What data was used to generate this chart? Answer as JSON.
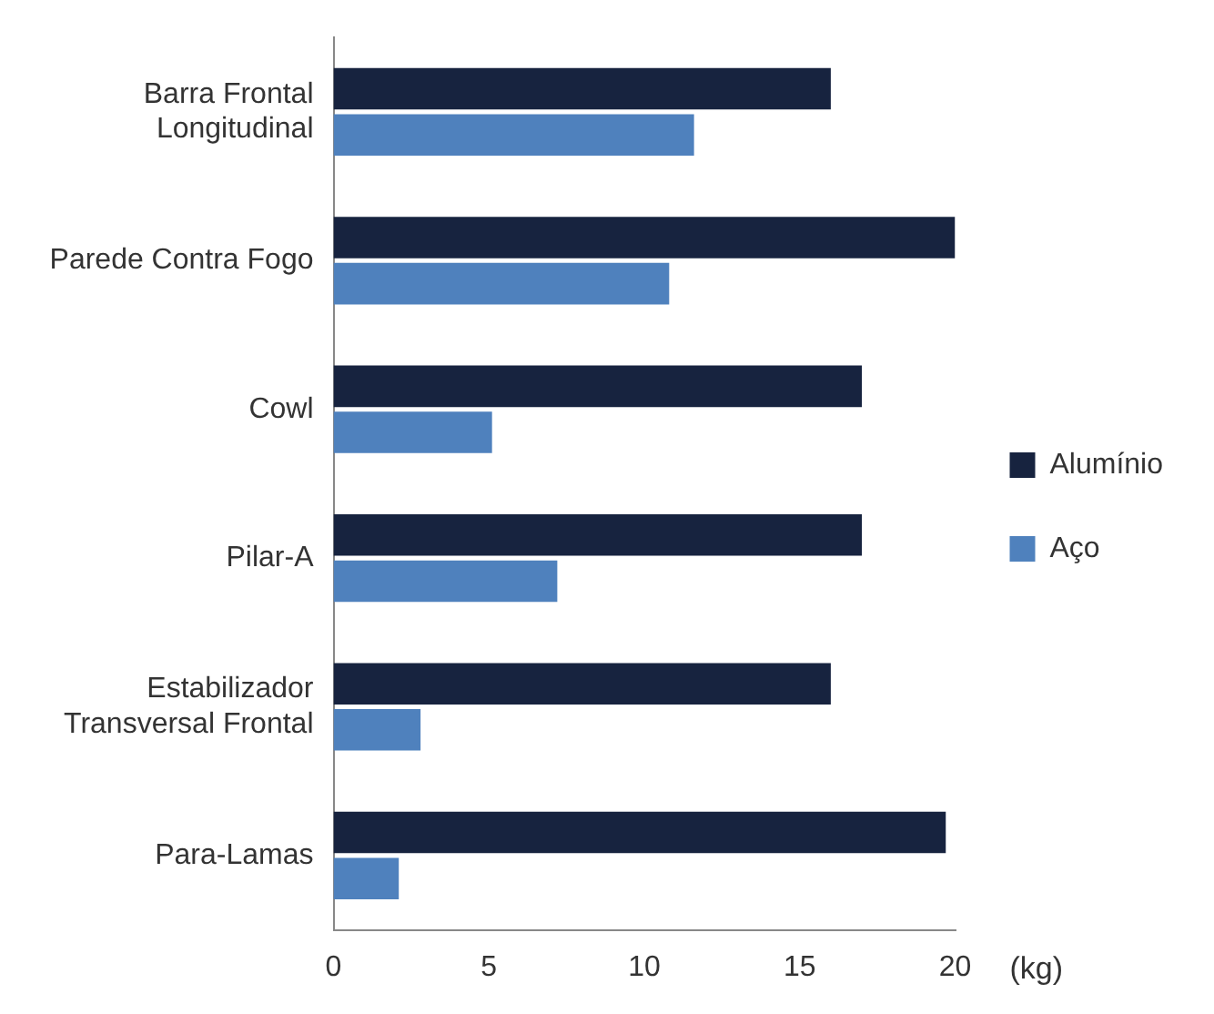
{
  "chart_data": {
    "type": "bar",
    "orientation": "horizontal",
    "categories": [
      "Barra Frontal Longitudinal",
      "Parede Contra Fogo",
      "Cowl",
      "Pilar-A",
      "Estabilizador Transversal Frontal",
      "Para-Lamas"
    ],
    "series": [
      {
        "name": "Alumínio",
        "color": "#17233f",
        "values": [
          16,
          20,
          17,
          17,
          16,
          19.7
        ]
      },
      {
        "name": "Aço",
        "color": "#4f81bd",
        "values": [
          11.6,
          10.8,
          5.1,
          7.2,
          2.8,
          2.1
        ]
      }
    ],
    "xlabel": "(kg)",
    "xlim": [
      0,
      20
    ],
    "xticks": [
      0,
      5,
      10,
      15,
      20
    ],
    "grid": false,
    "legend": "right"
  }
}
